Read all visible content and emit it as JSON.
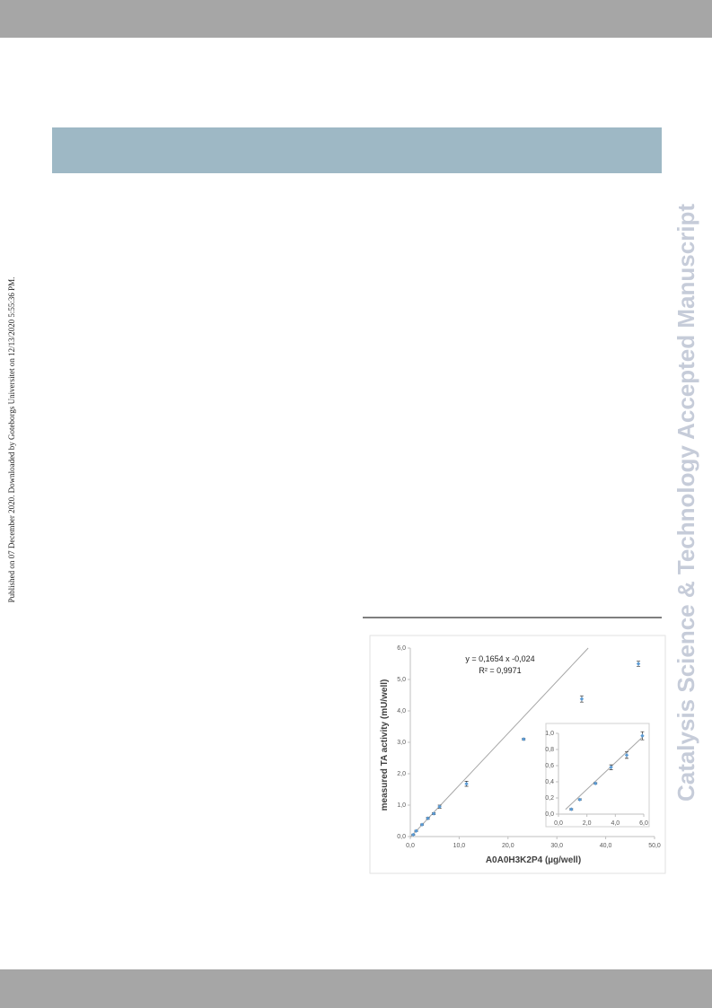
{
  "side_note": "Published on 07 December 2020. Downloaded by Goteborgs Universitet on 12/13/2020 5:55:36 PM.",
  "watermark": "Catalysis Science & Technology Accepted Manuscript",
  "chart_data": [
    {
      "type": "scatter",
      "x_label": "A0A0H3K2P4 (µg/well)",
      "y_label": "measured TA activity (mU/well)",
      "xlim": [
        0,
        50
      ],
      "ylim": [
        0,
        6
      ],
      "xticks": [
        {
          "value": 0,
          "label": "0,0"
        },
        {
          "value": 10,
          "label": "10,0"
        },
        {
          "value": 20,
          "label": "20,0"
        },
        {
          "value": 30,
          "label": "30,0"
        },
        {
          "value": 40,
          "label": "40,0"
        },
        {
          "value": 50,
          "label": "50,0"
        }
      ],
      "yticks": [
        {
          "value": 0,
          "label": "0,0"
        },
        {
          "value": 1,
          "label": "1,0"
        },
        {
          "value": 2,
          "label": "2,0"
        },
        {
          "value": 3,
          "label": "3,0"
        },
        {
          "value": 4,
          "label": "4,0"
        },
        {
          "value": 5,
          "label": "5,0"
        },
        {
          "value": 6,
          "label": "6,0"
        }
      ],
      "trendline": {
        "slope": 0.1654,
        "intercept": -0.024,
        "label": "y = 0,1654 x -0,024",
        "color": "#a6a6a6"
      },
      "r2_label": "R² = 0,9971",
      "series": [
        {
          "color": "#5b9bd5",
          "x": [
            0.6,
            1.2,
            2.4,
            3.6,
            4.8,
            6,
            11.5,
            23.2,
            35.1,
            46.7
          ],
          "values": [
            0.06,
            0.18,
            0.38,
            0.58,
            0.73,
            0.95,
            1.68,
            3.1,
            4.38,
            5.5
          ],
          "errors": [
            0.02,
            0.02,
            0.02,
            0.03,
            0.03,
            0.05,
            0.08,
            0.03,
            0.1,
            0.08
          ]
        }
      ]
    },
    {
      "type": "scatter",
      "xlim": [
        0,
        6
      ],
      "ylim": [
        0,
        1
      ],
      "xticks": [
        {
          "value": 0,
          "label": "0,0"
        },
        {
          "value": 2,
          "label": "2,0"
        },
        {
          "value": 4,
          "label": "4,0"
        },
        {
          "value": 6,
          "label": "6,0"
        }
      ],
      "yticks": [
        {
          "value": 0,
          "label": "0,0"
        },
        {
          "value": 0.2,
          "label": "0,2"
        },
        {
          "value": 0.4,
          "label": "0,4"
        },
        {
          "value": 0.6,
          "label": "0,6"
        },
        {
          "value": 0.8,
          "label": "0,8"
        },
        {
          "value": 1,
          "label": "1,0"
        }
      ],
      "series": [
        {
          "color": "#5b9bd5",
          "x": [
            0.9,
            1.5,
            2.6,
            3.7,
            4.8,
            5.9
          ],
          "values": [
            0.06,
            0.18,
            0.38,
            0.58,
            0.73,
            0.97
          ],
          "errors": [
            0.01,
            0.01,
            0.01,
            0.03,
            0.04,
            0.05
          ]
        }
      ]
    }
  ]
}
